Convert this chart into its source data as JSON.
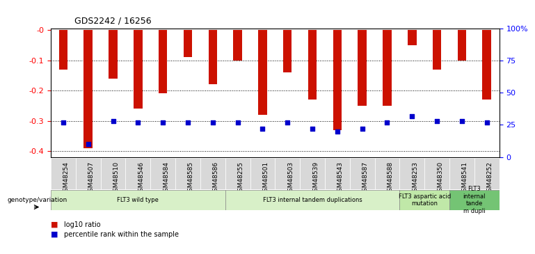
{
  "title": "GDS2242 / 16256",
  "samples": [
    "GSM48254",
    "GSM48507",
    "GSM48510",
    "GSM48546",
    "GSM48584",
    "GSM48585",
    "GSM48586",
    "GSM48255",
    "GSM48501",
    "GSM48503",
    "GSM48539",
    "GSM48543",
    "GSM48587",
    "GSM48588",
    "GSM48253",
    "GSM48350",
    "GSM48541",
    "GSM48252"
  ],
  "log10_ratio": [
    -0.13,
    -0.39,
    -0.16,
    -0.26,
    -0.21,
    -0.09,
    -0.18,
    -0.1,
    -0.28,
    -0.14,
    -0.23,
    -0.33,
    -0.25,
    -0.25,
    -0.05,
    -0.13,
    -0.1,
    -0.23
  ],
  "percentile_rank": [
    27,
    10,
    28,
    27,
    27,
    27,
    27,
    27,
    22,
    27,
    22,
    20,
    22,
    27,
    32,
    28,
    28,
    27
  ],
  "groups": [
    {
      "label": "FLT3 wild type",
      "start": 0,
      "end": 7,
      "color": "#d8f0c8"
    },
    {
      "label": "FLT3 internal tandem duplications",
      "start": 7,
      "end": 14,
      "color": "#d8f0c8"
    },
    {
      "label": "FLT3 aspartic acid\nmutation",
      "start": 14,
      "end": 16,
      "color": "#c0e8a8"
    },
    {
      "label": "FLT3\ninternal\ntande\nm dupli",
      "start": 16,
      "end": 18,
      "color": "#74c474"
    }
  ],
  "ylim_left": [
    -0.42,
    0.005
  ],
  "ylim_right": [
    -4.41,
    0.0525
  ],
  "yticks_left": [
    0.0,
    -0.1,
    -0.2,
    -0.3,
    -0.4
  ],
  "ytick_labels_left": [
    "-0",
    "-0.1",
    "-0.2",
    "-0.3",
    "-0.4"
  ],
  "yticks_right": [
    0,
    25,
    50,
    75,
    100
  ],
  "ytick_labels_right": [
    "0",
    "25",
    "50",
    "75",
    "100%"
  ],
  "bar_color": "#cc1100",
  "dot_color": "#0000cc",
  "dot_size": 22,
  "background_color": "#ffffff",
  "plot_bg": "#ffffff",
  "legend_items": [
    "log10 ratio",
    "percentile rank within the sample"
  ],
  "legend_colors": [
    "#cc1100",
    "#0000cc"
  ],
  "genotype_label": "genotype/variation"
}
